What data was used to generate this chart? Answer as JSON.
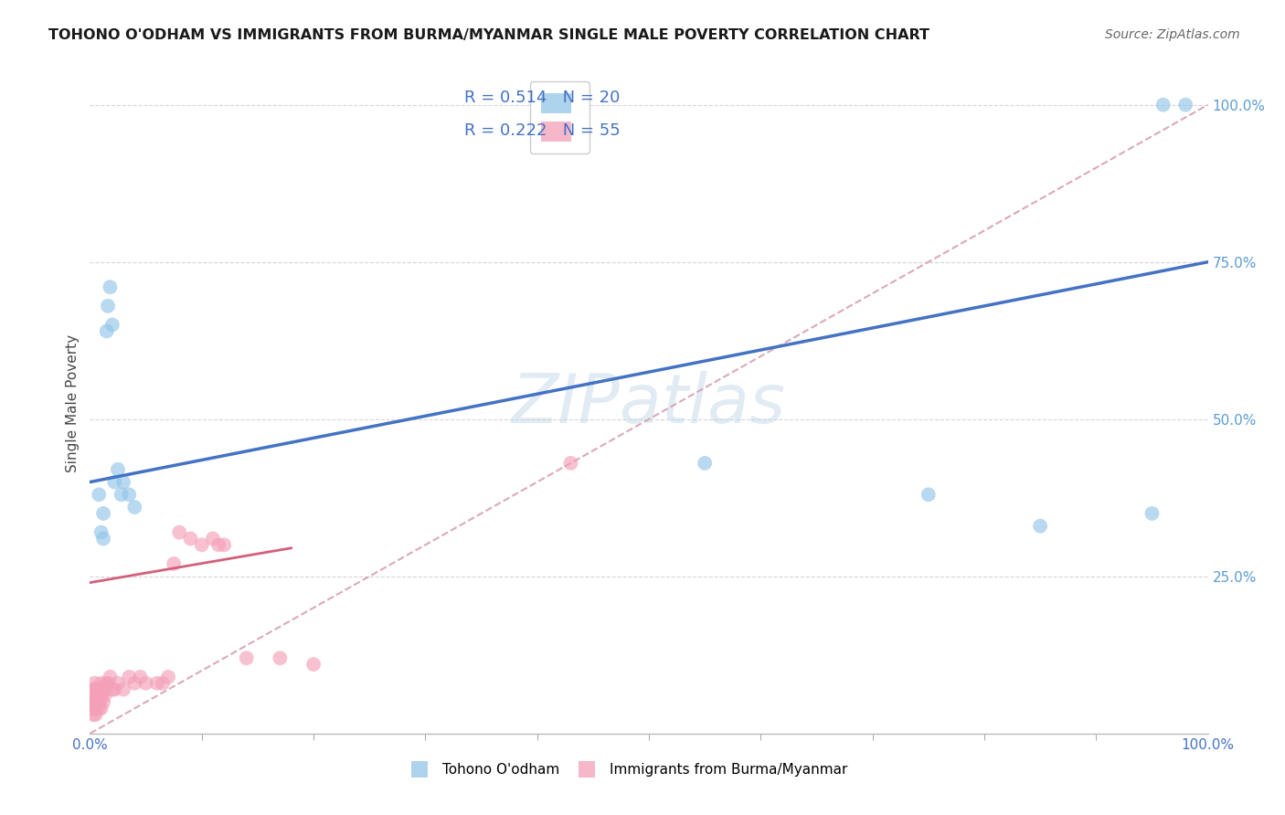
{
  "title": "TOHONO O'ODHAM VS IMMIGRANTS FROM BURMA/MYANMAR SINGLE MALE POVERTY CORRELATION CHART",
  "source": "Source: ZipAtlas.com",
  "ylabel": "Single Male Poverty",
  "watermark": "ZIPatlas",
  "blue_color": "#93c6e8",
  "pink_color": "#f4a0b8",
  "blue_line_color": "#4472c4",
  "pink_line_color": "#d45f7a",
  "dashed_line_color": "#d8a0b0",
  "grid_color": "#d0d0d0",
  "bg_color": "#ffffff",
  "label_color_blue": "#4472c4",
  "label_color_axis": "#5b9bd5",
  "blue_points_x": [
    0.008,
    0.01,
    0.012,
    0.012,
    0.015,
    0.016,
    0.018,
    0.02,
    0.022,
    0.025,
    0.028,
    0.03,
    0.035,
    0.04,
    0.55,
    0.75,
    0.85,
    0.95,
    0.96,
    0.98
  ],
  "blue_points_y": [
    0.38,
    0.32,
    0.35,
    0.31,
    0.64,
    0.68,
    0.71,
    0.65,
    0.4,
    0.42,
    0.38,
    0.4,
    0.38,
    0.36,
    0.43,
    0.38,
    0.33,
    0.35,
    1.0,
    1.0
  ],
  "pink_points_x": [
    0.003,
    0.003,
    0.003,
    0.003,
    0.003,
    0.003,
    0.004,
    0.004,
    0.004,
    0.004,
    0.004,
    0.005,
    0.005,
    0.005,
    0.005,
    0.006,
    0.006,
    0.006,
    0.007,
    0.007,
    0.008,
    0.008,
    0.008,
    0.01,
    0.01,
    0.01,
    0.012,
    0.012,
    0.013,
    0.014,
    0.015,
    0.016,
    0.018,
    0.02,
    0.022,
    0.025,
    0.03,
    0.035,
    0.04,
    0.045,
    0.05,
    0.06,
    0.065,
    0.07,
    0.075,
    0.08,
    0.09,
    0.1,
    0.11,
    0.115,
    0.12,
    0.14,
    0.17,
    0.2,
    0.43
  ],
  "pink_points_y": [
    0.03,
    0.04,
    0.04,
    0.05,
    0.06,
    0.07,
    0.04,
    0.05,
    0.06,
    0.07,
    0.08,
    0.03,
    0.04,
    0.05,
    0.06,
    0.04,
    0.06,
    0.07,
    0.05,
    0.07,
    0.04,
    0.05,
    0.07,
    0.04,
    0.06,
    0.08,
    0.05,
    0.07,
    0.06,
    0.07,
    0.08,
    0.08,
    0.09,
    0.07,
    0.07,
    0.08,
    0.07,
    0.09,
    0.08,
    0.09,
    0.08,
    0.08,
    0.08,
    0.09,
    0.27,
    0.32,
    0.31,
    0.3,
    0.31,
    0.3,
    0.3,
    0.12,
    0.12,
    0.11,
    0.43
  ],
  "blue_line_x0": 0.0,
  "blue_line_y0": 0.4,
  "blue_line_x1": 1.0,
  "blue_line_y1": 0.75,
  "pink_line_x0": 0.0,
  "pink_line_y0": 0.24,
  "pink_line_x1": 0.18,
  "pink_line_y1": 0.295,
  "dashed_line_x0": 0.0,
  "dashed_line_y0": 0.0,
  "dashed_line_x1": 1.0,
  "dashed_line_y1": 1.0,
  "xlim": [
    0.0,
    1.0
  ],
  "ylim": [
    0.0,
    1.05
  ]
}
